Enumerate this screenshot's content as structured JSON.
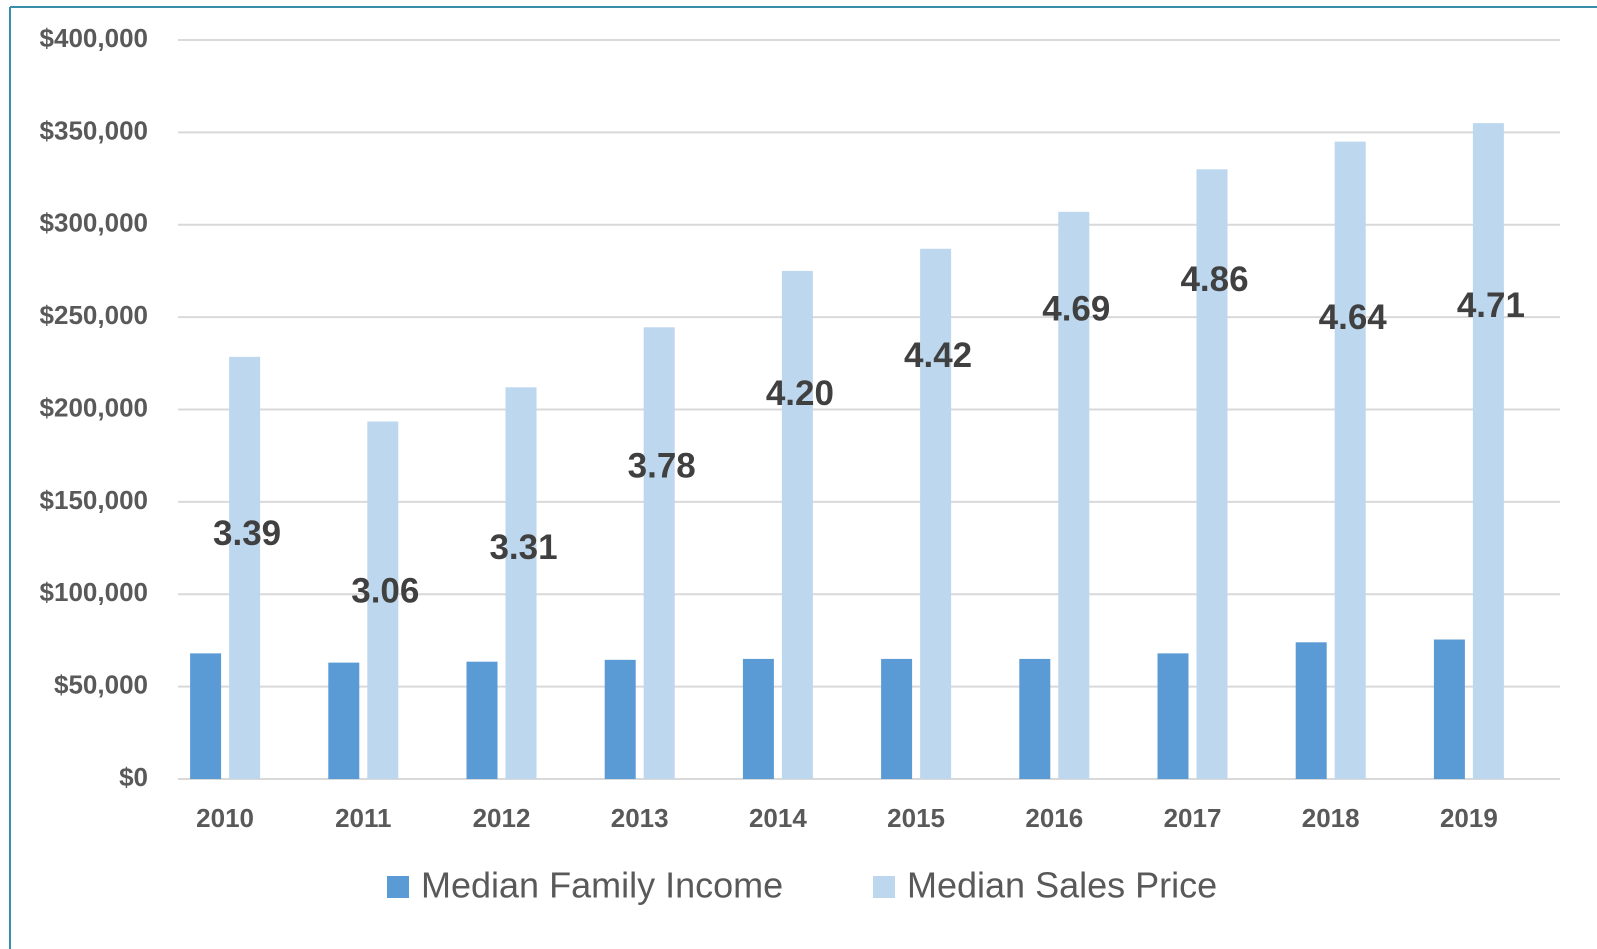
{
  "chart_data": {
    "type": "bar",
    "categories": [
      "2010",
      "2011",
      "2012",
      "2013",
      "2014",
      "2015",
      "2016",
      "2017",
      "2018",
      "2019"
    ],
    "series": [
      {
        "name": "Median Family Income",
        "color": "#5b9bd5",
        "values": [
          68000,
          63000,
          63500,
          64500,
          65000,
          65000,
          65000,
          68000,
          74000,
          75500
        ]
      },
      {
        "name": "Median Sales Price",
        "color": "#bdd7ee",
        "values": [
          228500,
          193500,
          212000,
          244500,
          275000,
          287000,
          307000,
          330000,
          345000,
          355000
        ]
      }
    ],
    "annotations": [
      "3.39",
      "3.06",
      "3.31",
      "3.78",
      "4.20",
      "4.42",
      "4.69",
      "4.86",
      "4.64",
      "4.71"
    ],
    "ylim": [
      0,
      400000
    ],
    "yticks": [
      {
        "value": 0,
        "label": "$0"
      },
      {
        "value": 50000,
        "label": "$50,000"
      },
      {
        "value": 100000,
        "label": "$100,000"
      },
      {
        "value": 150000,
        "label": "$150,000"
      },
      {
        "value": 200000,
        "label": "$200,000"
      },
      {
        "value": 250000,
        "label": "$250,000"
      },
      {
        "value": 300000,
        "label": "$300,000"
      },
      {
        "value": 350000,
        "label": "$350,000"
      },
      {
        "value": 400000,
        "label": "$400,000"
      }
    ],
    "grid": true,
    "legend": "bottom"
  }
}
